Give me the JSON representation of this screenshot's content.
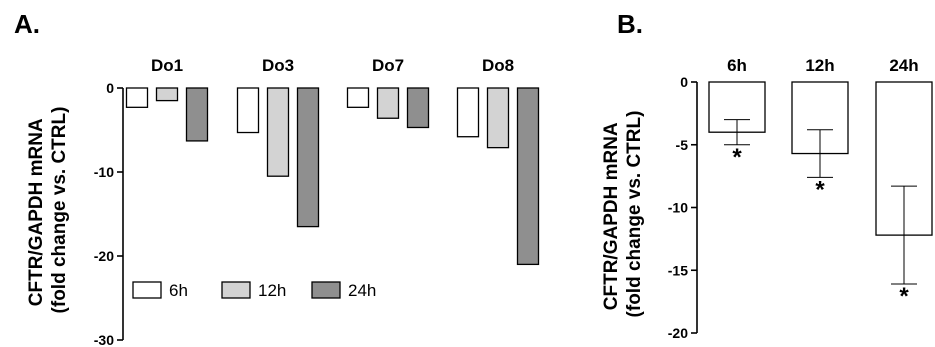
{
  "chart_data": [
    {
      "panel": "A.",
      "type": "bar",
      "categories": [
        "Do1",
        "Do3",
        "Do7",
        "Do8"
      ],
      "series": [
        {
          "name": "6h",
          "values": [
            -2.3,
            -5.3,
            -2.3,
            -5.8
          ],
          "color": "#ffffff"
        },
        {
          "name": "12h",
          "values": [
            -1.5,
            -10.5,
            -3.6,
            -7.1
          ],
          "color": "#d3d3d3"
        },
        {
          "name": "24h",
          "values": [
            -6.3,
            -16.5,
            -4.7,
            -21.0
          ],
          "color": "#8f8f8f"
        }
      ],
      "ylabel": [
        "CFTR/GAPDH mRNA",
        "(fold change vs. CTRL)"
      ],
      "ylim": [
        -30,
        0
      ],
      "yticks": [
        0,
        -10,
        -20,
        -30
      ],
      "ytick_labels": [
        "0",
        "-10",
        "-20",
        "-30"
      ],
      "legend": {
        "placement": "bottom-left",
        "entries": [
          "6h",
          "12h",
          "24h"
        ]
      },
      "grid": false
    },
    {
      "panel": "B.",
      "type": "bar",
      "categories": [
        "6h",
        "12h",
        "24h"
      ],
      "values": [
        -4.0,
        -5.7,
        -12.2
      ],
      "errors": [
        1.0,
        1.9,
        3.9
      ],
      "significance": [
        "*",
        "*",
        "*"
      ],
      "color": "#ffffff",
      "ylabel": [
        "CFTR/GAPDH  mRNA",
        "(fold change vs. CTRL)"
      ],
      "ylim": [
        -20,
        0
      ],
      "yticks": [
        0,
        -5,
        -10,
        -15,
        -20
      ],
      "ytick_labels": [
        "0",
        "-5",
        "-10",
        "-15",
        "-20"
      ],
      "grid": false
    }
  ]
}
